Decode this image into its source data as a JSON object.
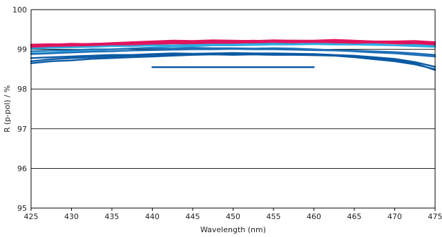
{
  "chart_data": {
    "type": "line",
    "title": "",
    "xlabel": "Wavelength (nm)",
    "ylabel": "R (p-pol) / %",
    "xlim": [
      425,
      475
    ],
    "ylim": [
      95,
      100
    ],
    "xticks": [
      425,
      430,
      435,
      440,
      445,
      450,
      455,
      460,
      465,
      470,
      475
    ],
    "yticks": [
      95,
      96,
      97,
      98,
      99,
      100
    ],
    "grid": "horizontal",
    "legend": "none",
    "series": [
      {
        "color": "#e0155e",
        "x": [
          425,
          427.5,
          430,
          432.5,
          435,
          437.5,
          440,
          442.5,
          445,
          447.5,
          450,
          452.5,
          455,
          457.5,
          460,
          462.5,
          465,
          467.5,
          470,
          472.5,
          475
        ],
        "y": [
          99.08,
          99.1,
          99.1,
          99.12,
          99.13,
          99.15,
          99.16,
          99.17,
          99.18,
          99.18,
          99.19,
          99.19,
          99.2,
          99.19,
          99.2,
          99.2,
          99.19,
          99.18,
          99.18,
          99.16,
          99.14
        ]
      },
      {
        "color": "#e0155e",
        "x": [
          425,
          427.5,
          430,
          432.5,
          435,
          437.5,
          440,
          442.5,
          445,
          447.5,
          450,
          452.5,
          455,
          457.5,
          460,
          462.5,
          465,
          467.5,
          470,
          472.5,
          475
        ],
        "y": [
          99.12,
          99.13,
          99.12,
          99.14,
          99.15,
          99.17,
          99.18,
          99.2,
          99.19,
          99.21,
          99.2,
          99.22,
          99.2,
          99.22,
          99.21,
          99.2,
          99.21,
          99.19,
          99.18,
          99.2,
          99.15
        ]
      },
      {
        "color": "#e0155e",
        "x": [
          425,
          427.5,
          430,
          432.5,
          435,
          437.5,
          440,
          442.5,
          445,
          447.5,
          450,
          452.5,
          455,
          457.5,
          460,
          462.5,
          465,
          467.5,
          470,
          472.5,
          475
        ],
        "y": [
          99.05,
          99.06,
          99.08,
          99.08,
          99.1,
          99.12,
          99.13,
          99.15,
          99.14,
          99.16,
          99.16,
          99.17,
          99.16,
          99.17,
          99.18,
          99.17,
          99.16,
          99.17,
          99.15,
          99.14,
          99.1
        ]
      },
      {
        "color": "#e0155e",
        "x": [
          425,
          427.5,
          430,
          432.5,
          435,
          437.5,
          440,
          442.5,
          445,
          447.5,
          450,
          452.5,
          455,
          457.5,
          460,
          462.5,
          465,
          467.5,
          470,
          472.5,
          475
        ],
        "y": [
          99.1,
          99.12,
          99.14,
          99.13,
          99.16,
          99.18,
          99.2,
          99.22,
          99.21,
          99.23,
          99.22,
          99.21,
          99.23,
          99.22,
          99.22,
          99.24,
          99.22,
          99.2,
          99.2,
          99.21,
          99.18
        ]
      },
      {
        "color": "#2bace2",
        "x": [
          425,
          427.5,
          430,
          432.5,
          435,
          437.5,
          440,
          442.5,
          445,
          447.5,
          450,
          452.5,
          455,
          457.5,
          460,
          462.5,
          465,
          467.5,
          470,
          472.5,
          475
        ],
        "y": [
          98.9,
          98.92,
          98.95,
          98.97,
          99.0,
          99.02,
          99.05,
          99.07,
          99.08,
          99.1,
          99.1,
          99.11,
          99.12,
          99.12,
          99.13,
          99.12,
          99.12,
          99.11,
          99.1,
          99.08,
          99.06
        ]
      },
      {
        "color": "#2bace2",
        "x": [
          425,
          427.5,
          430,
          432.5,
          435,
          437.5,
          440,
          442.5,
          445,
          447.5,
          450,
          452.5,
          455,
          457.5,
          460,
          462.5,
          465,
          467.5,
          470,
          472.5,
          475
        ],
        "y": [
          99.02,
          99.04,
          99.05,
          99.06,
          99.08,
          99.08,
          99.1,
          99.1,
          99.11,
          99.12,
          99.12,
          99.13,
          99.14,
          99.13,
          99.14,
          99.13,
          99.12,
          99.13,
          99.1,
          99.11,
          99.08
        ]
      },
      {
        "color": "#1f6fb5",
        "x": [
          425,
          427.5,
          430,
          432.5,
          435,
          437.5,
          440,
          442.5,
          445,
          447.5,
          450,
          452.5,
          455,
          457.5,
          460,
          462.5,
          465,
          467.5,
          470,
          472.5,
          475
        ],
        "y": [
          98.88,
          98.9,
          98.92,
          98.94,
          98.95,
          98.97,
          98.98,
          98.99,
          99.0,
          99.0,
          99.01,
          99.0,
          99.0,
          98.99,
          98.98,
          98.97,
          98.95,
          98.92,
          98.9,
          98.86,
          98.82
        ]
      },
      {
        "color": "#1f6fb5",
        "x": [
          425,
          427.5,
          430,
          432.5,
          435,
          437.5,
          440,
          442.5,
          445,
          447.5,
          450,
          452.5,
          455,
          457.5,
          460,
          462.5,
          465,
          467.5,
          470,
          472.5,
          475
        ],
        "y": [
          98.95,
          98.97,
          98.98,
          99.0,
          99.0,
          99.02,
          99.03,
          99.02,
          99.04,
          99.03,
          99.03,
          99.02,
          99.03,
          99.02,
          99.0,
          98.98,
          98.97,
          98.95,
          98.93,
          98.9,
          98.86
        ]
      },
      {
        "color": "#0b5aa4",
        "x": [
          425,
          427.5,
          430,
          432.5,
          435,
          437.5,
          440,
          442.5,
          445,
          447.5,
          450,
          452.5,
          455,
          457.5,
          460,
          462.5,
          465,
          467.5,
          470,
          472.5,
          475
        ],
        "y": [
          98.7,
          98.75,
          98.78,
          98.8,
          98.82,
          98.84,
          98.86,
          98.87,
          98.88,
          98.88,
          98.89,
          98.88,
          98.88,
          98.87,
          98.86,
          98.84,
          98.8,
          98.75,
          98.7,
          98.62,
          98.5
        ]
      },
      {
        "color": "#0b5aa4",
        "x": [
          425,
          427.5,
          430,
          432.5,
          435,
          437.5,
          440,
          442.5,
          445,
          447.5,
          450,
          452.5,
          455,
          457.5,
          460,
          462.5,
          465,
          467.5,
          470,
          472.5,
          475
        ],
        "y": [
          98.78,
          98.8,
          98.82,
          98.84,
          98.86,
          98.86,
          98.88,
          98.9,
          98.89,
          98.9,
          98.91,
          98.9,
          98.9,
          98.89,
          98.88,
          98.86,
          98.84,
          98.8,
          98.76,
          98.68,
          98.56
        ]
      },
      {
        "color": "#0b5aa4",
        "x": [
          425,
          427.5,
          430,
          432.5,
          435,
          437.5,
          440,
          442.5,
          445,
          447.5,
          450,
          452.5,
          455,
          457.5,
          460,
          462.5,
          465,
          467.5,
          470,
          472.5,
          475
        ],
        "y": [
          98.65,
          98.7,
          98.72,
          98.76,
          98.78,
          98.8,
          98.82,
          98.84,
          98.86,
          98.87,
          98.86,
          98.87,
          98.86,
          98.86,
          98.85,
          98.84,
          98.82,
          98.78,
          98.72,
          98.65,
          98.48
        ]
      },
      {
        "color": "#0b5aa4",
        "x": [
          440,
          460
        ],
        "y": [
          98.55,
          98.55
        ]
      }
    ]
  }
}
